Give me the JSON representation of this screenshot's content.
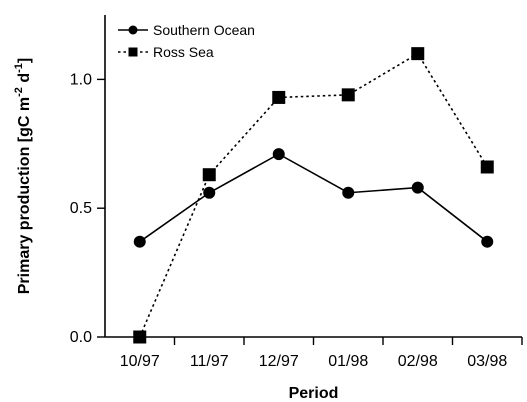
{
  "chart_data": {
    "type": "line",
    "title": "",
    "xlabel": "Period",
    "ylabel": {
      "prefix": "Primary production [gC m",
      "sup1": "-2",
      "mid": " d",
      "sup2": "-1",
      "suffix": "]"
    },
    "categories": [
      "10/97",
      "11/97",
      "12/97",
      "01/98",
      "02/98",
      "03/98"
    ],
    "ylim": [
      0,
      1.25
    ],
    "yticks": [
      0.0,
      0.5,
      1.0
    ],
    "ytick_labels": [
      "0.0",
      "0.5",
      "1.0"
    ],
    "grid": false,
    "legend_position": "top-left",
    "series": [
      {
        "name": "Southern Ocean",
        "marker": "circle",
        "line": "solid",
        "color": "#000000",
        "values": [
          0.37,
          0.56,
          0.71,
          0.56,
          0.58,
          0.37
        ]
      },
      {
        "name": "Ross Sea",
        "marker": "square",
        "line": "dotted",
        "color": "#000000",
        "values": [
          0.0,
          0.63,
          0.93,
          0.94,
          1.1,
          0.66
        ]
      }
    ]
  }
}
